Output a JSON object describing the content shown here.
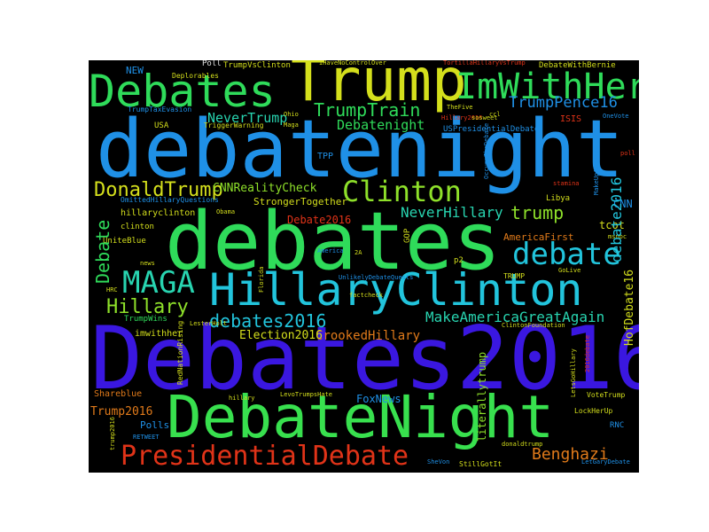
{
  "figure": {
    "background": "#000000",
    "page_background": "#ffffff"
  },
  "words": {
    "debates2016_big": "Debates2016",
    "debatenight": "debatenight",
    "debates": "debates",
    "debatenight_cap": "DebateNight",
    "trump": "Trump",
    "debates_cap": "Debates",
    "hillaryclinton": "HillaryClinton",
    "imwithher": "ImWithHer",
    "presidentialdebate": "PresidentialDebate",
    "clinton": "Clinton",
    "maga": "MAGA",
    "debate": "debate",
    "hillary": "Hillary",
    "donaldtrump": "DonaldTrump",
    "trumptrain": "TrumpTrain",
    "debates2016": "debates2016",
    "makeamericagreatagain": "MakeAmericaGreatAgain",
    "trump_lower": "trump",
    "trumppence16": "TrumpPence16",
    "debatenight_lower": "Debatenight",
    "nevertrump": "NeverTrump",
    "neverhillary": "NeverHillary",
    "benghazi": "Benghazi",
    "crookedhillary": "CrookedHillary",
    "election2016": "Election2016",
    "trump2016": "Trump2016",
    "debate_cap": "Debate",
    "debate2016": "debate2016",
    "cnnrealitycheck": "CNNRealityCheck",
    "hofdebate16": "HofDebate16",
    "debate2016_cap": "Debate2016",
    "literallytrump": "literallytrump",
    "americafirst": "AmericaFirst",
    "strongertogether": "StrongerTogether",
    "foxnews": "FoxNews",
    "tcot": "tcot",
    "cnn": "CNN",
    "polls": "Polls",
    "hillaryclinton_lower": "hillaryclinton",
    "imwithher_lower": "imwithher",
    "isis": "ISIS",
    "shareblue": "Shareblue",
    "tpp": "TPP",
    "uniteblue": "UniteBlue",
    "new": "NEW",
    "usa": "USA",
    "trumpwins": "TrumpWins",
    "clinton_lower": "clinton",
    "libya": "Libya",
    "rnc": "RNC",
    "usprez": "USPresidentialDebate",
    "p2": "p2",
    "trumpvsclinton": "TrumpVsClinton",
    "debatewithbernie": "DebateWithBernie",
    "stillgotit": "StillGotIt",
    "votetrump": "VoteTrump",
    "lockherup": "LockHerUp",
    "gop": "GOP",
    "trump_caps": "TRUMP",
    "americagreat": "America",
    "factcheck": "factcheck",
    "lestercholt": "LesterHolt",
    "hrc": "HRC",
    "news": "news",
    "poll": "Poll",
    "deplorables": "Deplorables",
    "triggerwarning": "TriggerWarning",
    "trumptaxevasion": "TrumpTaxEvasion",
    "ohio": "Ohio",
    "maga_small": "Maga",
    "florida": "Florida",
    "obama": "Obama",
    "ihavenocontrol": "IHaveNoControlOver",
    "tortilla": "TortillaHillaryVsTrump",
    "hillary2016": "Hillary2016",
    "sosweet": "sosweet",
    "thefive": "TheFive",
    "cc": "ccl",
    "onevote": "OneVote",
    "poll_lower": "poll",
    "stamina": "stamina",
    "msnbc": "msnbc",
    "golive": "GoLive",
    "a2": "2A",
    "omitted": "OmittedHillaryQuestions",
    "unlikely": "UnlikelyDebateQuests",
    "clintonfoundation": "ClintonFoundation",
    "retweet": "RETWEET",
    "shevon": "SheVon",
    "letgarydebate": "LetGaryDebate",
    "donaldtrump_lower": "donaldtrump",
    "redvationrising": "RedNationRising",
    "hillary_lower": "hillary",
    "trump2016_lower": "trump2016",
    "levotrumps": "LevoTrumpsHate",
    "debate2016_small": "2016debate",
    "occupy": "OccupyTheDebate",
    "letsgo": "LetsGoHillary",
    "makeup": "MakeUpAmerica"
  },
  "colors": {
    "deep_blue": "#3a17e0",
    "sky_blue": "#1f90e6",
    "green": "#2fdb5a",
    "bright_green": "#38e04e",
    "yellow": "#d4df1c",
    "teal": "#28d4b0",
    "cyan": "#22c4dc",
    "red": "#e03318",
    "orange": "#e07a1a",
    "lime": "#8ee02a"
  }
}
